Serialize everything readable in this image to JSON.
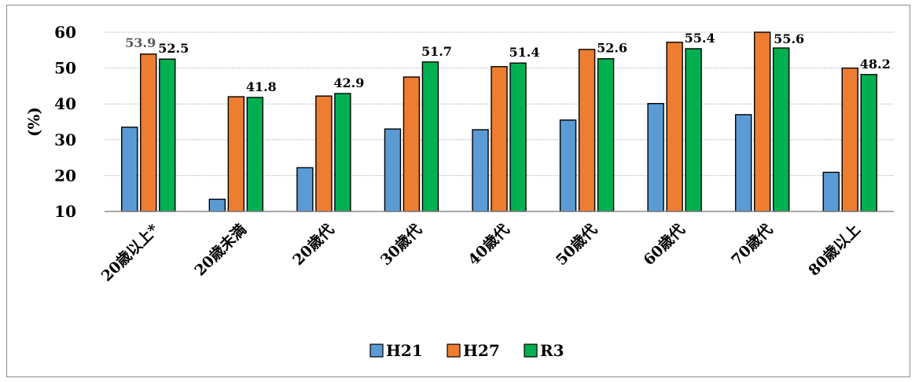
{
  "chart_data": {
    "type": "bar",
    "ylabel": "(%)",
    "ylim": [
      10,
      60
    ],
    "yticks": [
      "10",
      "20",
      "30",
      "40",
      "50",
      "60"
    ],
    "grid": true,
    "legend_position": "bottom",
    "categories": [
      "20歳以上*",
      "20歳未満",
      "20歳代",
      "30歳代",
      "40歳代",
      "50歳代",
      "60歳代",
      "70歳代",
      "80歳以上"
    ],
    "series": [
      {
        "name": "H21",
        "color": "#5b9bd5",
        "values": [
          33.5,
          13.4,
          22.2,
          33.0,
          32.8,
          35.5,
          40.1,
          37.0,
          20.9
        ]
      },
      {
        "name": "H27",
        "color": "#ed7d31",
        "values": [
          53.9,
          42.0,
          42.2,
          47.5,
          50.4,
          55.2,
          57.2,
          60.5,
          50.0
        ]
      },
      {
        "name": "R3",
        "color": "#00b050",
        "values": [
          52.5,
          41.8,
          42.9,
          51.7,
          51.4,
          52.6,
          55.4,
          55.6,
          48.2
        ]
      }
    ],
    "data_labels": [
      {
        "category": "20歳以上*",
        "series": "H27",
        "text": "53.9",
        "color": "#595959"
      },
      {
        "category": "20歳以上*",
        "series": "R3",
        "text": "52.5"
      },
      {
        "category": "20歳未満",
        "series": "R3",
        "text": "41.8"
      },
      {
        "category": "20歳代",
        "series": "R3",
        "text": "42.9"
      },
      {
        "category": "30歳代",
        "series": "R3",
        "text": "51.7"
      },
      {
        "category": "40歳代",
        "series": "R3",
        "text": "51.4"
      },
      {
        "category": "50歳代",
        "series": "R3",
        "text": "52.6"
      },
      {
        "category": "60歳代",
        "series": "R3",
        "text": "55.4"
      },
      {
        "category": "70歳代",
        "series": "R3",
        "text": "55.6"
      },
      {
        "category": "80歳以上",
        "series": "R3",
        "text": "48.2"
      }
    ]
  }
}
